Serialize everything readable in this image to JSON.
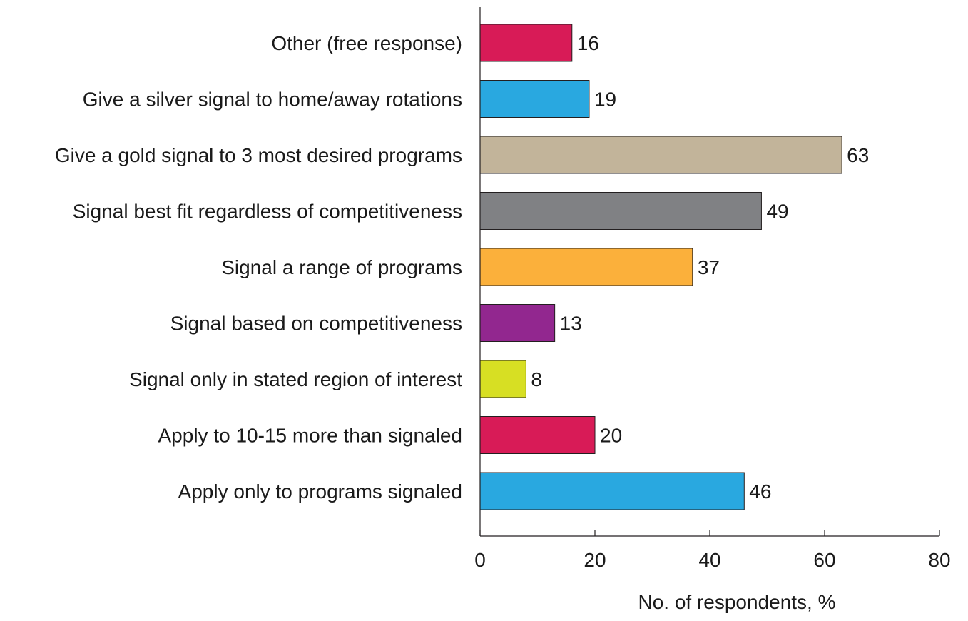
{
  "chart_data": {
    "type": "bar",
    "orientation": "horizontal",
    "title": "",
    "xlabel": "No. of respondents, %",
    "ylabel": "",
    "xlim": [
      0,
      80
    ],
    "xticks": [
      0,
      20,
      40,
      60,
      80
    ],
    "grid": false,
    "categories": [
      "Other (free response)",
      "Give a silver signal to home/away rotations",
      "Give a gold signal to 3 most desired programs",
      "Signal best fit regardless of competitiveness",
      "Signal a range of programs",
      "Signal based on competitiveness",
      "Signal only in stated region of interest",
      "Apply to 10-15 more than signaled",
      "Apply only to programs signaled"
    ],
    "values": [
      16,
      19,
      63,
      49,
      37,
      13,
      8,
      20,
      46
    ],
    "colors": [
      "#d81b57",
      "#29a8e0",
      "#c2b49a",
      "#808184",
      "#fbb03b",
      "#92278f",
      "#d7df23",
      "#d81b57",
      "#29a8e0"
    ]
  }
}
